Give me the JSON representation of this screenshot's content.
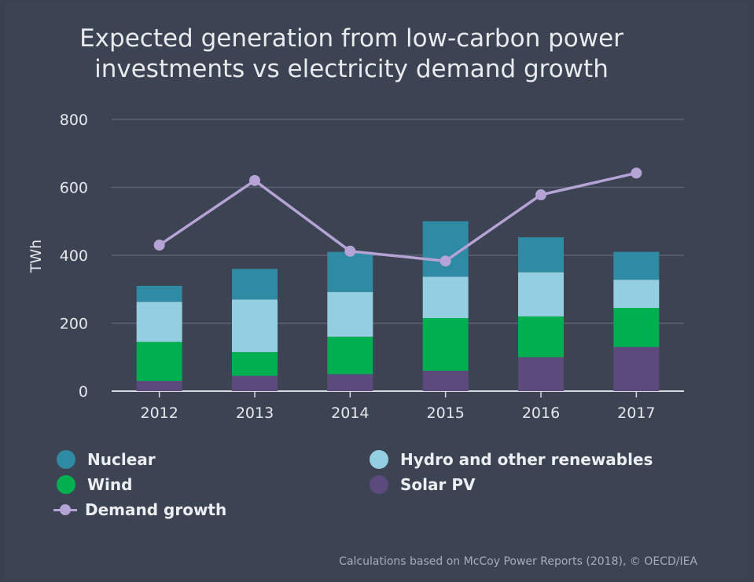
{
  "chart_data": {
    "type": "bar",
    "stacked": true,
    "title_lines": [
      "Expected generation from low-carbon power",
      "investments vs electricity demand growth"
    ],
    "ylabel": "TWh",
    "xlabel": "",
    "ylim": [
      0,
      800
    ],
    "yticks": [
      0,
      200,
      400,
      600,
      800
    ],
    "categories": [
      "2012",
      "2013",
      "2014",
      "2015",
      "2016",
      "2017"
    ],
    "series": [
      {
        "name": "Solar PV",
        "color": "#5c4a7c",
        "values": [
          30,
          45,
          50,
          60,
          100,
          130
        ]
      },
      {
        "name": "Wind",
        "color": "#00b050",
        "values": [
          115,
          70,
          110,
          155,
          120,
          115
        ]
      },
      {
        "name": "Hydro and other renewables",
        "color": "#93cfe0",
        "values": [
          118,
          155,
          132,
          122,
          130,
          83
        ]
      },
      {
        "name": "Nuclear",
        "color": "#2f8aa3",
        "values": [
          47,
          90,
          118,
          163,
          103,
          82
        ]
      }
    ],
    "line_series": {
      "name": "Demand growth",
      "color": "#b6a3d6",
      "values": [
        430,
        620,
        412,
        383,
        578,
        642
      ]
    },
    "grid": true,
    "legend_position": "bottom"
  },
  "legend": {
    "nuclear": "Nuclear",
    "hydro": "Hydro and other renewables",
    "wind": "Wind",
    "solar": "Solar PV",
    "demand": "Demand growth"
  },
  "colors": {
    "nuclear": "#2f8aa3",
    "hydro": "#93cfe0",
    "wind": "#00b050",
    "solar": "#5c4a7c",
    "demand": "#b6a3d6"
  },
  "source": "Calculations based on McCoy Power Reports (2018), © OECD/IEA"
}
